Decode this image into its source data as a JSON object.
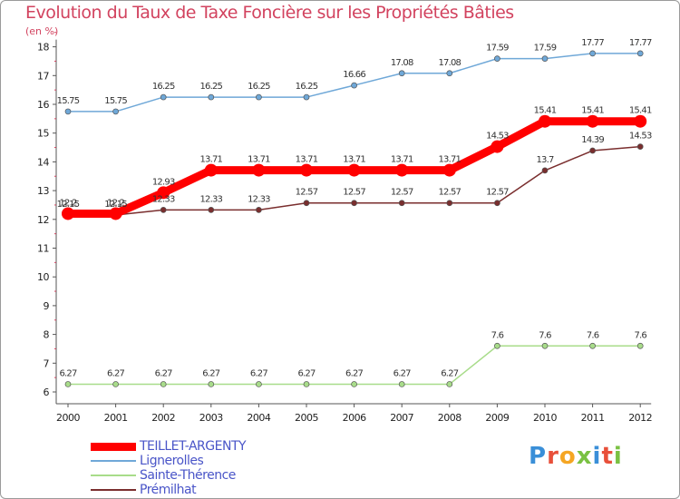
{
  "title": "Evolution du Taux de Taxe Foncière sur les Propriétés Bâties",
  "unit": "(en %)",
  "logo": {
    "text": "Proxiti",
    "colors": [
      "#3a8fd8",
      "#e8503a",
      "#f5a623",
      "#7ac143",
      "#3a8fd8",
      "#e8503a",
      "#7ac143"
    ]
  },
  "chart_data": {
    "type": "line",
    "x": [
      "2000",
      "2001",
      "2002",
      "2003",
      "2004",
      "2005",
      "2006",
      "2007",
      "2008",
      "2009",
      "2010",
      "2011",
      "2012"
    ],
    "ylim": [
      6,
      18
    ],
    "yticks": [
      "6",
      "7",
      "8",
      "9",
      "10",
      "11",
      "12",
      "13",
      "14",
      "15",
      "16",
      "17",
      "18"
    ],
    "grid": false,
    "legend_position": "bottom-left",
    "series": [
      {
        "name": "TEILLET-ARGENTY",
        "color": "#ff0000",
        "values": [
          12.2,
          12.2,
          12.93,
          13.71,
          13.71,
          13.71,
          13.71,
          13.71,
          13.71,
          14.53,
          15.41,
          15.41,
          15.41
        ],
        "labels": [
          "12.2",
          "12.2",
          "12.93",
          "13.71",
          "13.71",
          "13.71",
          "13.71",
          "13.71",
          "13.71",
          "14.53",
          "15.41",
          "15.41",
          "15.41"
        ]
      },
      {
        "name": "Lignerolles",
        "color": "#6fa8d8",
        "values": [
          15.75,
          15.75,
          16.25,
          16.25,
          16.25,
          16.25,
          16.66,
          17.08,
          17.08,
          17.59,
          17.59,
          17.77,
          17.77
        ],
        "labels": [
          "15.75",
          "15.75",
          "16.25",
          "16.25",
          "16.25",
          "16.25",
          "16.66",
          "17.08",
          "17.08",
          "17.59",
          "17.59",
          "17.77",
          "17.77"
        ]
      },
      {
        "name": "Sainte-Thérence",
        "color": "#a8dc8a",
        "values": [
          6.27,
          6.27,
          6.27,
          6.27,
          6.27,
          6.27,
          6.27,
          6.27,
          6.27,
          7.6,
          7.6,
          7.6,
          7.6
        ],
        "labels": [
          "6.27",
          "6.27",
          "6.27",
          "6.27",
          "6.27",
          "6.27",
          "6.27",
          "6.27",
          "6.27",
          "7.6",
          "7.6",
          "7.6",
          "7.6"
        ]
      },
      {
        "name": "Prémilhat",
        "color": "#7a2e2e",
        "values": [
          12.15,
          12.15,
          12.33,
          12.33,
          12.33,
          12.57,
          12.57,
          12.57,
          12.57,
          12.57,
          13.7,
          14.39,
          14.53
        ],
        "labels": [
          "12.15",
          "12.15",
          "12.33",
          "12.33",
          "12.33",
          "12.57",
          "12.57",
          "12.57",
          "12.57",
          "12.57",
          "13.7",
          "14.39",
          "14.53"
        ]
      }
    ]
  }
}
